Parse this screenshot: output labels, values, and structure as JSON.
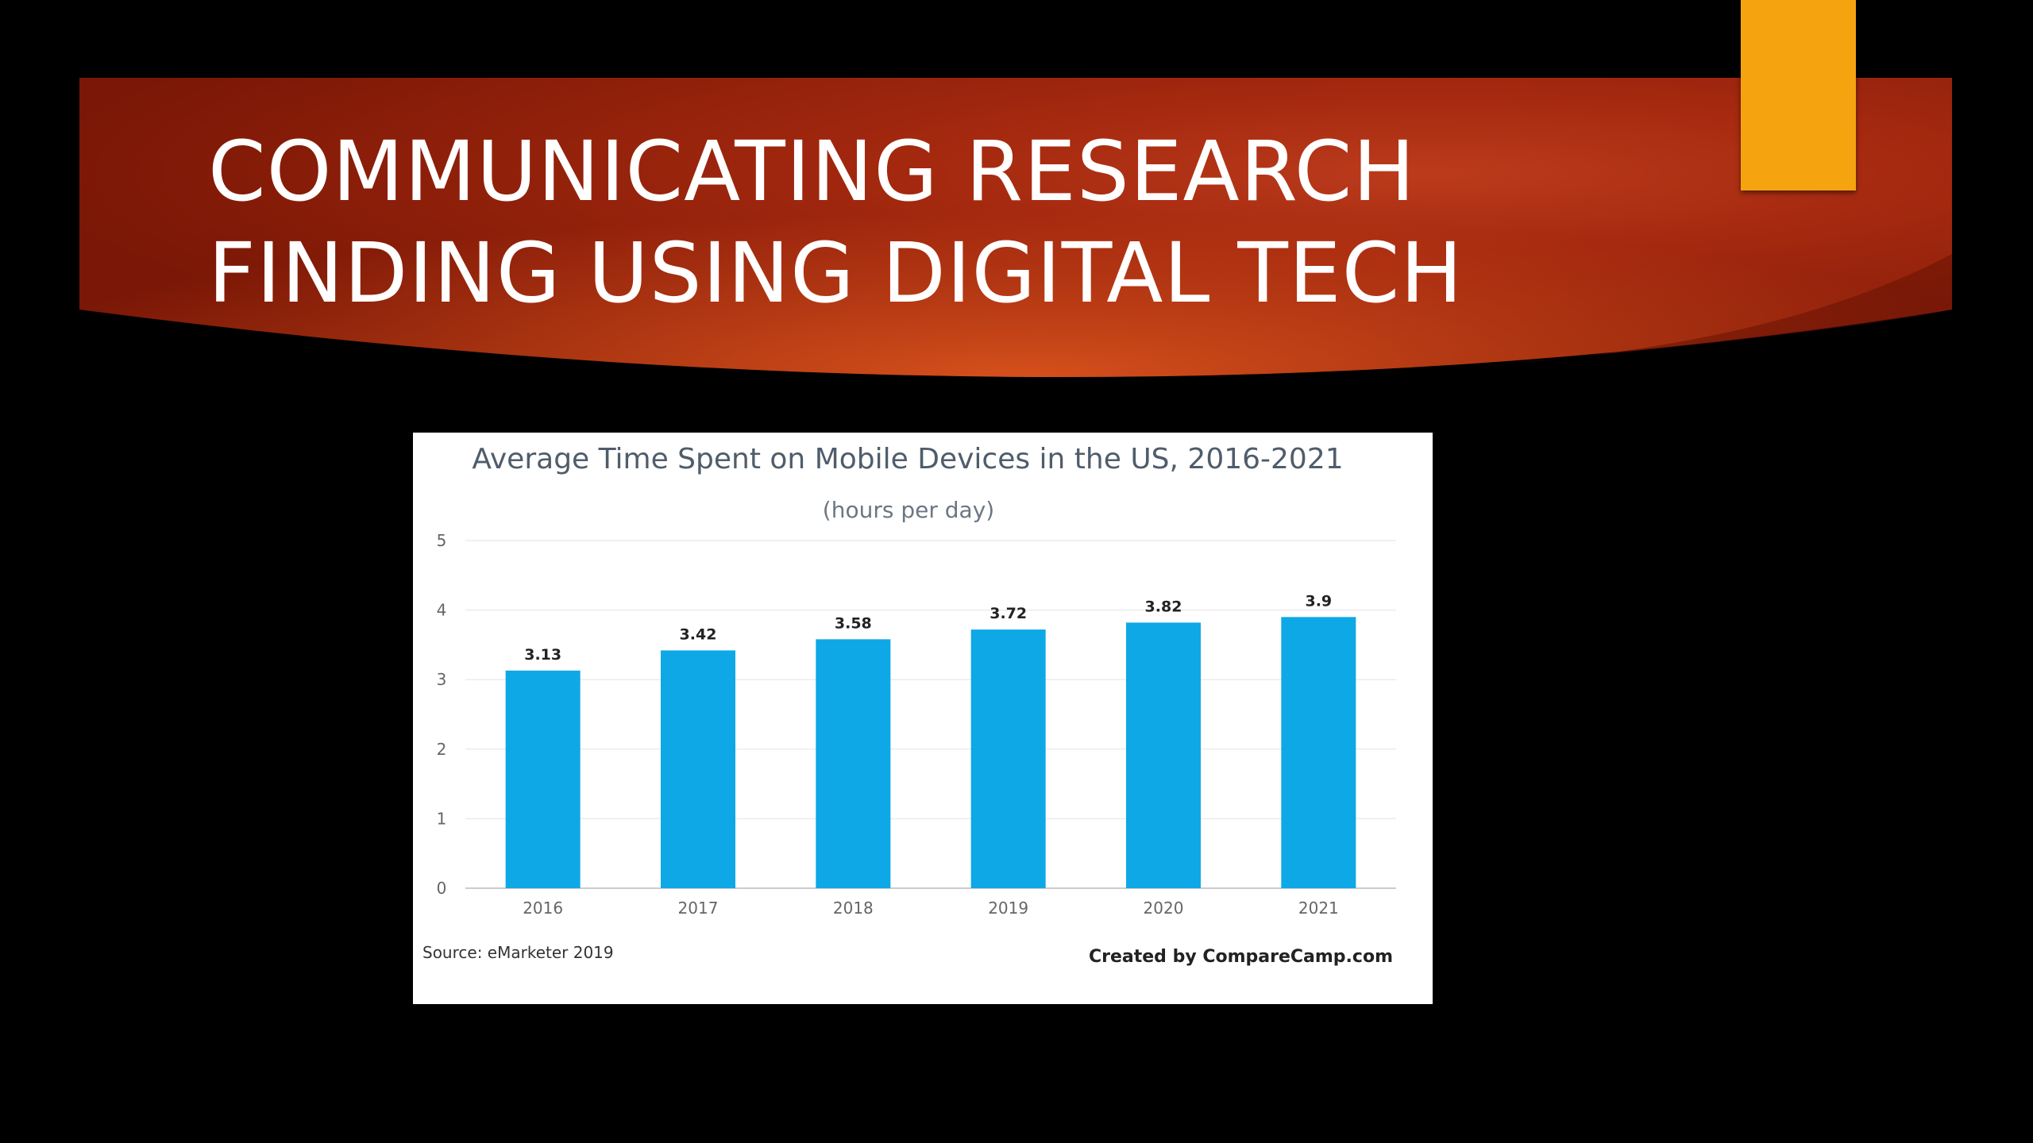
{
  "slide": {
    "title_lines": [
      "COMMUNICATING RESEARCH",
      "FINDING USING DIGITAL TECH"
    ],
    "accent_color": "#f5a30f",
    "banner_color": "#b93410"
  },
  "chart_data": {
    "type": "bar",
    "title": "Average Time Spent on Mobile Devices in the US, 2016-2021",
    "subtitle": "(hours per day)",
    "categories": [
      "2016",
      "2017",
      "2018",
      "2019",
      "2020",
      "2021"
    ],
    "values": [
      3.13,
      3.42,
      3.58,
      3.72,
      3.82,
      3.9
    ],
    "value_labels": [
      "3.13",
      "3.42",
      "3.58",
      "3.72",
      "3.82",
      "3.9"
    ],
    "ylim": [
      0,
      5
    ],
    "yticks": [
      0,
      1,
      2,
      3,
      4,
      5
    ],
    "ytick_labels": [
      "0",
      "1",
      "2",
      "3",
      "4",
      "5"
    ],
    "grid": true,
    "bar_color": "#0ea8e6",
    "source": "Source: eMarketer 2019",
    "credit": "Created by CompareCamp.com"
  }
}
